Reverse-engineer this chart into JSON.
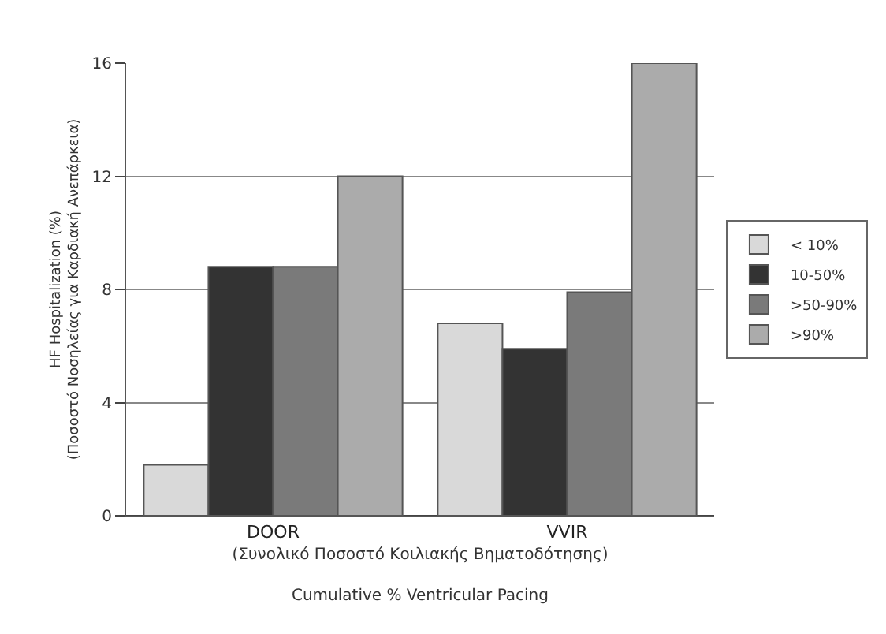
{
  "chart_data": {
    "type": "bar",
    "categories": [
      "DOOR",
      "VVIR"
    ],
    "series": [
      {
        "name": "< 10%",
        "color": "#d9d9d9",
        "values": [
          1.8,
          6.8
        ]
      },
      {
        "name": "10-50%",
        "color": "#333333",
        "values": [
          8.8,
          5.9
        ]
      },
      {
        "name": ">50-90%",
        "color": "#7a7a7a",
        "values": [
          8.8,
          7.9
        ]
      },
      {
        "name": ">90%",
        "color": "#ababab",
        "values": [
          12,
          16
        ]
      }
    ],
    "ylabel": "HF Hospitalization (%)\n(Ποσοστό Νοσηλείας για Καρδιακή Ανεπάρκεια)",
    "xlabel": "(Συνολικό Ποσοστό Κοιλιακής Βηματοδότησης)\n\nCumulative % Ventricular Pacing",
    "ylim": [
      0,
      16
    ],
    "yticks": [
      0,
      4,
      8,
      12,
      16
    ],
    "grid": "y",
    "legend": "right"
  }
}
